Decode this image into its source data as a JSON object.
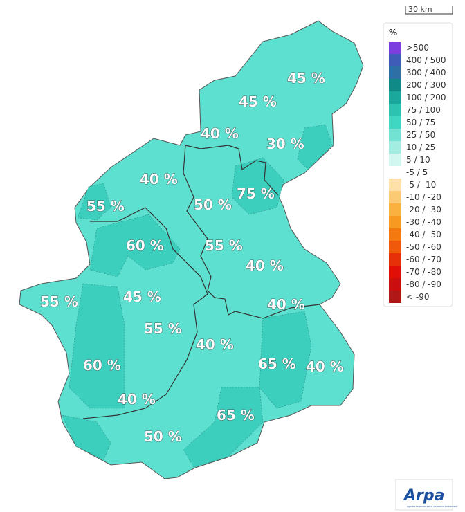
{
  "scale_bar": {
    "label": "30 km"
  },
  "legend": {
    "title": "%",
    "items": [
      {
        "label": ">500",
        "color": "#7b3fe0"
      },
      {
        "label": "400 / 500",
        "color": "#3f5cb8"
      },
      {
        "label": "300 / 400",
        "color": "#2e6fa6"
      },
      {
        "label": "200 / 300",
        "color": "#0f8a86"
      },
      {
        "label": "100 / 200",
        "color": "#19a89b"
      },
      {
        "label": "75 / 100",
        "color": "#2cc4b0"
      },
      {
        "label": "50 / 75",
        "color": "#3fd6c2"
      },
      {
        "label": "25 / 50",
        "color": "#72e2d3"
      },
      {
        "label": "10 / 25",
        "color": "#a3ece2"
      },
      {
        "label": "5 / 10",
        "color": "#d2f7f1"
      },
      {
        "label": "-5 / 5",
        "color": "#ffffff"
      },
      {
        "label": "-5 / -10",
        "color": "#fde1a9"
      },
      {
        "label": "-10 / -20",
        "color": "#fcca72"
      },
      {
        "label": "-20 / -30",
        "color": "#fbb13f"
      },
      {
        "label": "-30 / -40",
        "color": "#f89a1f"
      },
      {
        "label": "-40 / -50",
        "color": "#f47a10"
      },
      {
        "label": "-50 / -60",
        "color": "#f0580a"
      },
      {
        "label": "-60 / -70",
        "color": "#e83008"
      },
      {
        "label": "-70 / -80",
        "color": "#e01008"
      },
      {
        "label": "-80 / -90",
        "color": "#cc0d0d"
      },
      {
        "label": "< -90",
        "color": "#b01818"
      }
    ]
  },
  "labels": [
    "45 %",
    "45 %",
    "40 %",
    "30 %",
    "40 %",
    "75 %",
    "55 %",
    "50 %",
    "60 %",
    "55 %",
    "40 %",
    "55 %",
    "45 %",
    "40 %",
    "55 %",
    "40 %",
    "60 %",
    "65 %",
    "40 %",
    "40 %",
    "65 %",
    "50 %"
  ],
  "logo": {
    "name": "Arpa",
    "subtitle": "Agenzia Regionale per la Protezione Ambientale"
  }
}
